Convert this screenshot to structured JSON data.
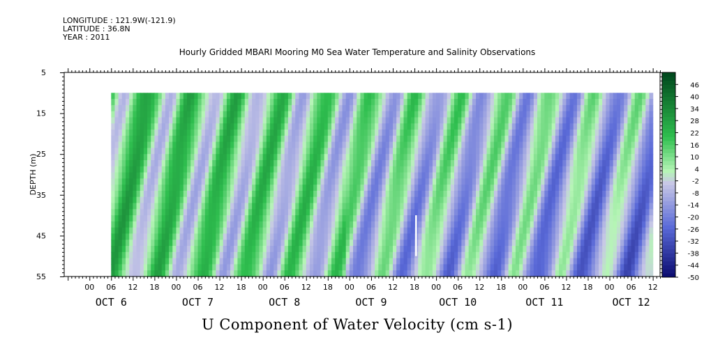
{
  "header": {
    "longitude": "LONGITUDE : 121.9W(-121.9)",
    "latitude": "LATITUDE : 36.8N",
    "year": "YEAR : 2011"
  },
  "chart_data": {
    "type": "heatmap",
    "title": "Hourly Gridded MBARI Mooring M0 Sea Water Temperature and Salinity Observations",
    "xlabel": "U Component of Water Velocity (cm s-1)",
    "ylabel": "DEPTH (m)",
    "ylim": [
      5,
      55
    ],
    "y_inverted": true,
    "y_ticks": [
      5,
      15,
      25,
      35,
      45,
      55
    ],
    "data_depth_range": [
      10,
      55
    ],
    "x_range_hours": [
      -7,
      158
    ],
    "data_x_range_hours": [
      6,
      156
    ],
    "x_hour_tick_labels": [
      "00",
      "06",
      "12",
      "18"
    ],
    "x_day_labels": [
      "OCT  6",
      "OCT  7",
      "OCT  8",
      "OCT  9",
      "OCT 10",
      "OCT 11",
      "OCT 12"
    ],
    "colorbar_levels": [
      46,
      40,
      34,
      28,
      22,
      16,
      10,
      4,
      -2,
      -8,
      -14,
      -20,
      -26,
      -32,
      -38,
      -44,
      -50
    ],
    "colorbar_range": [
      -50,
      52
    ],
    "colors": {
      "positive_dark": "#00461c",
      "positive_mid": "#2fbf4f",
      "positive_light": "#b6f5b6",
      "near_zero": "#c8c8e6",
      "negative_mid": "#5a6ad8",
      "negative_dark": "#0a0a6e",
      "gap": "#ffffff"
    }
  }
}
